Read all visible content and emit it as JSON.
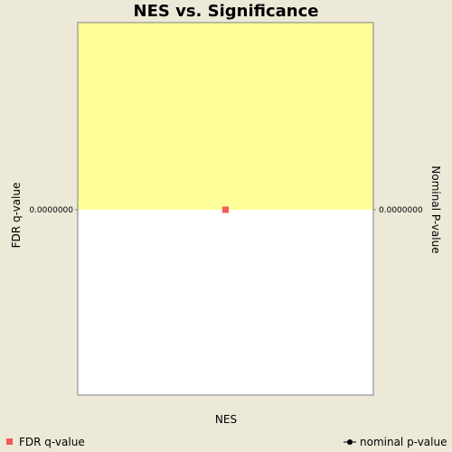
{
  "chart_data": {
    "type": "scatter",
    "title": "NES vs. Significance",
    "xlabel": "NES",
    "ylabel_left": "FDR q-value",
    "ylabel_right": "Nominal P-value",
    "left_ticks": [
      "0.0000000"
    ],
    "right_ticks": [
      "0.0000000"
    ],
    "grid": false,
    "legend_placement": "bottom",
    "series": [
      {
        "name": "FDR q-value",
        "axis": "left",
        "marker": "square",
        "color": "#f05a5a",
        "points": [
          {
            "x": 0,
            "y": 0.0
          }
        ]
      },
      {
        "name": "nominal p-value",
        "axis": "right",
        "marker": "line-dot",
        "color": "#000000",
        "points": []
      }
    ],
    "colors": {
      "background": "#ece9d8",
      "plot_background": "#ffffff",
      "highlight_region": "#ffff99",
      "axis_line": "#808080"
    }
  }
}
